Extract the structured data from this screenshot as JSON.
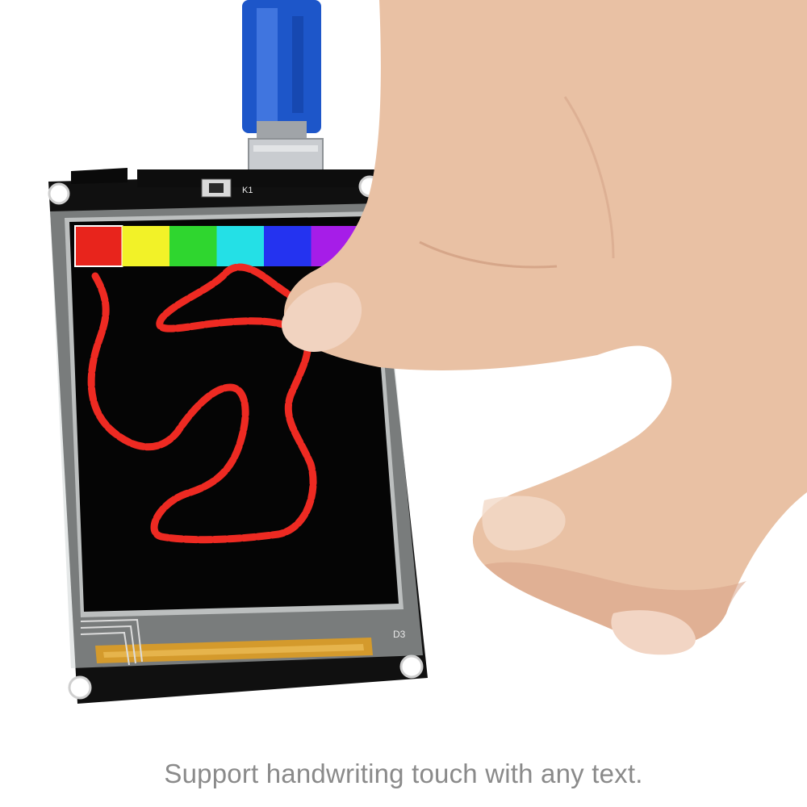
{
  "caption": "Support handwriting touch with any text.",
  "board": {
    "button_label": "K1",
    "corner_label": "D3"
  },
  "palette": {
    "swatches": [
      "#e8241c",
      "#f2f228",
      "#2fd62f",
      "#24e0e6",
      "#2433f0",
      "#a61de8"
    ],
    "selected_index": 0,
    "stroke_color": "#ee2a22",
    "screen_bg": "#050505"
  },
  "icons": [
    "usb-cable-icon",
    "hand-icon",
    "tact-switch-icon"
  ]
}
